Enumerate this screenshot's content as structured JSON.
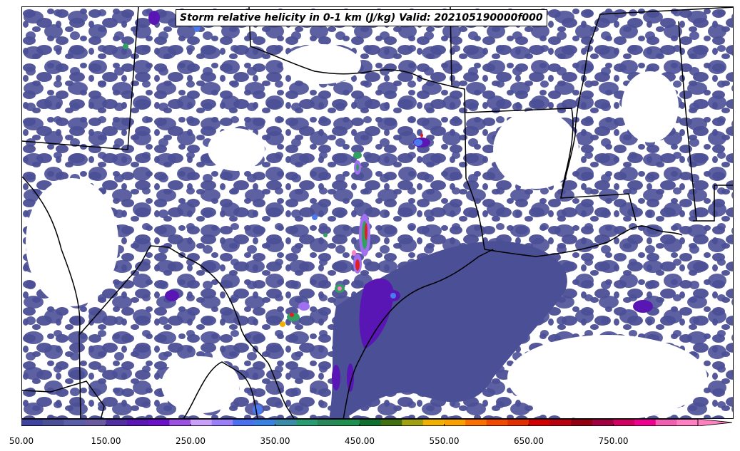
{
  "map": {
    "title": "Storm relative helicity in 0-1 km (J/kg) Valid: 202105190000f000",
    "field_colors": {
      "background_fill": "#4b4f96",
      "enhanced_fill": "#5a16b4",
      "light_purple": "#a070f0",
      "blue": "#4a7af0",
      "green": "#30a060",
      "red": "#e02020",
      "pink": "#ff80c0"
    },
    "boundary_color": "#000000"
  },
  "colorbar": {
    "colors": [
      "#3f43a0",
      "#4b4f96",
      "#5a5ea8",
      "#6a5aa0",
      "#5030a0",
      "#5a16b4",
      "#6a10c8",
      "#9a50e0",
      "#c8a0f8",
      "#9a80f8",
      "#4a70f0",
      "#3a80e0",
      "#3a8aa8",
      "#2a9a70",
      "#28885a",
      "#209050",
      "#107030",
      "#407010",
      "#a0a010",
      "#f0b000",
      "#f8a000",
      "#f87000",
      "#f04a00",
      "#e03000",
      "#d00000",
      "#b80010",
      "#900010",
      "#a00040",
      "#d00060",
      "#f00090",
      "#f060b0",
      "#ff80c0"
    ],
    "extend": "max",
    "ticks": [
      "50.00",
      "150.00",
      "250.00",
      "350.00",
      "450.00",
      "550.00",
      "650.00",
      "750.00"
    ]
  }
}
